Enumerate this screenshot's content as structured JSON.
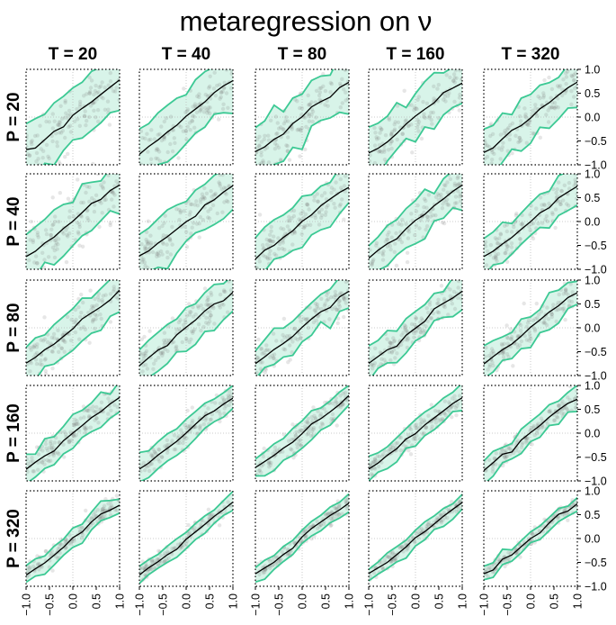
{
  "chart_data": {
    "type": "scatter",
    "title": "metaregression on ν",
    "column_labels": [
      "T = 20",
      "T = 40",
      "T = 80",
      "T = 160",
      "T = 320"
    ],
    "row_labels": [
      "P = 20",
      "P = 40",
      "P = 80",
      "P = 160",
      "P = 320"
    ],
    "xlim": [
      -1.0,
      1.0
    ],
    "ylim": [
      -1.0,
      1.0
    ],
    "x_ticks": [
      -1.0,
      -0.5,
      0.0,
      0.5,
      1.0
    ],
    "y_ticks": [
      -1.0,
      -0.5,
      0.0,
      0.5,
      1.0
    ],
    "x_tick_labels": [
      "−1.0",
      "−0.5",
      "0.0",
      "0.5",
      "1.0"
    ],
    "y_tick_labels": [
      "−1.0",
      "−0.5",
      "0.0",
      "0.5",
      "1.0"
    ],
    "series": [
      {
        "name": "points",
        "style": "grey semi-transparent dots",
        "color": "#777777"
      },
      {
        "name": "mean",
        "style": "black line",
        "color": "#000000"
      },
      {
        "name": "interval",
        "style": "green band",
        "color": "#3cc994",
        "fill": "#a8e6cf"
      }
    ],
    "mean_line": {
      "x": [
        -1.0,
        -0.8,
        -0.6,
        -0.4,
        -0.2,
        0.0,
        0.2,
        0.4,
        0.6,
        0.8,
        1.0
      ],
      "y": [
        -0.75,
        -0.62,
        -0.48,
        -0.33,
        -0.17,
        0.0,
        0.17,
        0.33,
        0.48,
        0.62,
        0.75
      ]
    },
    "band_half_width_by_row": [
      0.6,
      0.5,
      0.4,
      0.3,
      0.18
    ]
  }
}
